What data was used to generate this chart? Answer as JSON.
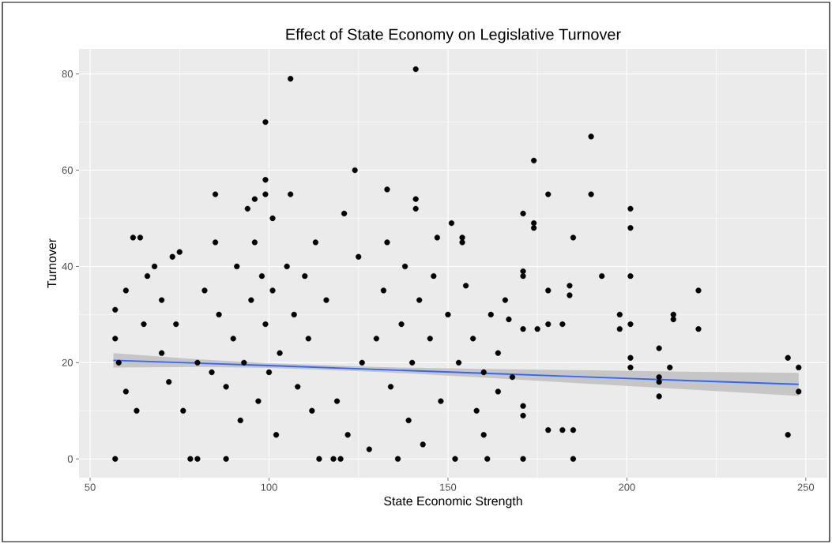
{
  "chart_data": {
    "type": "scatter",
    "title": "Effect of State Economy on Legislative Turnover",
    "xlabel": "State Economic Strength",
    "ylabel": "Turnover",
    "xlim": [
      46.9,
      256
    ],
    "ylim": [
      -3.9,
      85.2
    ],
    "xticks": [
      50,
      100,
      150,
      200,
      250
    ],
    "yticks": [
      0,
      20,
      40,
      60,
      80
    ],
    "grid": true,
    "series": [
      {
        "type": "scatter",
        "marker": "circle",
        "color": "#000000",
        "x": [
          57,
          106,
          99,
          141,
          124,
          190,
          174,
          85,
          96,
          99,
          106,
          99,
          94,
          101,
          133,
          141,
          141,
          121,
          171,
          178,
          190,
          201,
          201,
          185,
          193,
          201,
          198,
          198,
          201,
          201,
          201,
          209,
          213,
          213,
          220,
          220,
          209,
          209,
          209,
          212,
          245,
          245,
          248,
          248,
          185,
          171,
          178,
          182,
          185,
          184,
          184,
          182,
          174,
          174,
          171,
          171,
          167,
          171,
          171,
          178,
          178,
          175,
          171,
          166,
          164,
          161,
          160,
          154,
          154,
          151,
          147,
          57,
          57,
          58,
          60,
          60,
          62,
          64,
          63,
          65,
          66,
          68,
          70,
          70,
          72,
          73,
          75,
          74,
          76,
          78,
          80,
          80,
          82,
          84,
          85,
          86,
          88,
          88,
          90,
          91,
          92,
          93,
          95,
          96,
          97,
          98,
          99,
          100,
          101,
          102,
          103,
          105,
          107,
          108,
          110,
          111,
          112,
          113,
          114,
          116,
          118,
          119,
          120,
          122,
          125,
          126,
          128,
          130,
          132,
          133,
          134,
          136,
          137,
          138,
          139,
          140,
          142,
          143,
          145,
          146,
          148,
          150,
          152,
          153,
          155,
          157,
          158,
          160,
          162,
          164,
          168
        ],
        "values": [
          0,
          79,
          70,
          81,
          60,
          67,
          62,
          55,
          54,
          58,
          55,
          55,
          52,
          50,
          56,
          54,
          52,
          51,
          51,
          55,
          55,
          52,
          48,
          46,
          38,
          38,
          30,
          27,
          28,
          21,
          19,
          23,
          29,
          30,
          35,
          27,
          16,
          17,
          13,
          19,
          21,
          5,
          19,
          14,
          0,
          0,
          6,
          6,
          6,
          36,
          34,
          28,
          48,
          49,
          39,
          38,
          29,
          11,
          9,
          35,
          28,
          27,
          27,
          33,
          14,
          0,
          5,
          46,
          45,
          49,
          46,
          25,
          31,
          20,
          14,
          35,
          46,
          46,
          10,
          28,
          38,
          40,
          33,
          22,
          16,
          42,
          43,
          28,
          10,
          0,
          0,
          20,
          35,
          18,
          45,
          30,
          15,
          0,
          25,
          40,
          8,
          20,
          33,
          45,
          12,
          38,
          28,
          18,
          35,
          5,
          22,
          40,
          30,
          15,
          38,
          25,
          10,
          45,
          0,
          33,
          0,
          12,
          0,
          5,
          42,
          20,
          2,
          25,
          35,
          45,
          15,
          0,
          28,
          40,
          8,
          20,
          33,
          3,
          25,
          38,
          12,
          30,
          0,
          20,
          36,
          25,
          10,
          18,
          30,
          22,
          17
        ]
      },
      {
        "type": "line",
        "marker": "none",
        "color": "#3366ff",
        "x": [
          56.5,
          80,
          100,
          130,
          160,
          190,
          220,
          248
        ],
        "values": [
          20.5,
          19.9,
          19.4,
          18.6,
          17.8,
          17.0,
          16.2,
          15.5
        ],
        "lower": [
          19.0,
          19.1,
          18.9,
          18.1,
          16.9,
          15.6,
          14.3,
          13.1
        ],
        "upper": [
          22.0,
          20.7,
          19.9,
          19.1,
          18.7,
          18.4,
          18.1,
          17.9
        ]
      }
    ]
  }
}
